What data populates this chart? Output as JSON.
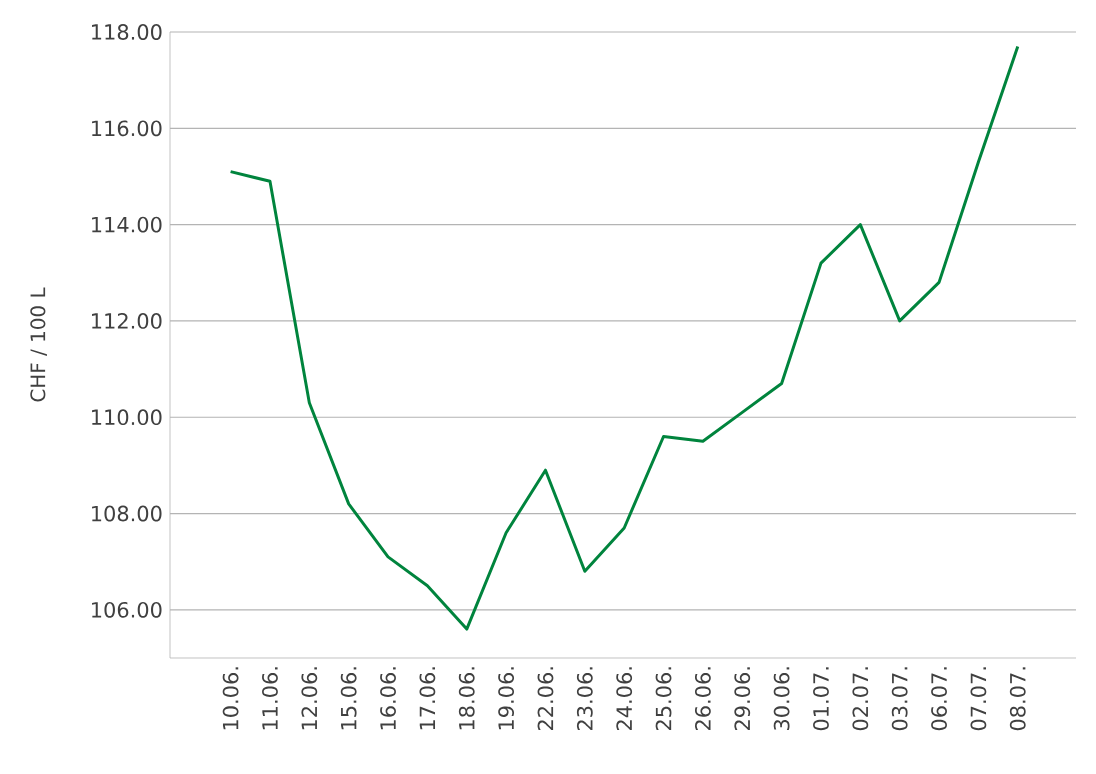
{
  "chart_data": {
    "type": "line",
    "ylabel": "CHF / 100 L",
    "categories": [
      "10.06.",
      "11.06.",
      "12.06.",
      "15.06.",
      "16.06.",
      "17.06.",
      "18.06.",
      "19.06.",
      "22.06.",
      "23.06.",
      "24.06.",
      "25.06.",
      "26.06.",
      "29.06.",
      "30.06.",
      "01.07.",
      "02.07.",
      "03.07.",
      "06.07.",
      "07.07.",
      "08.07."
    ],
    "series": [
      {
        "color": "#00843d",
        "values": [
          115.1,
          114.9,
          110.3,
          108.2,
          107.1,
          106.5,
          105.6,
          107.6,
          108.9,
          106.8,
          107.7,
          109.6,
          109.5,
          110.1,
          110.7,
          113.2,
          114.0,
          112.0,
          112.8,
          115.3,
          117.7
        ]
      }
    ],
    "ylim": [
      105,
      118
    ],
    "yticks": [
      {
        "value": 106,
        "label": "106.00"
      },
      {
        "value": 108,
        "label": "108.00"
      },
      {
        "value": 110,
        "label": "110.00"
      },
      {
        "value": 112,
        "label": "112.00"
      },
      {
        "value": 114,
        "label": "114.00"
      },
      {
        "value": 116,
        "label": "116.00"
      },
      {
        "value": 118,
        "label": "118.00"
      }
    ],
    "grid": "y",
    "marker": "none",
    "line_style": "solid"
  }
}
